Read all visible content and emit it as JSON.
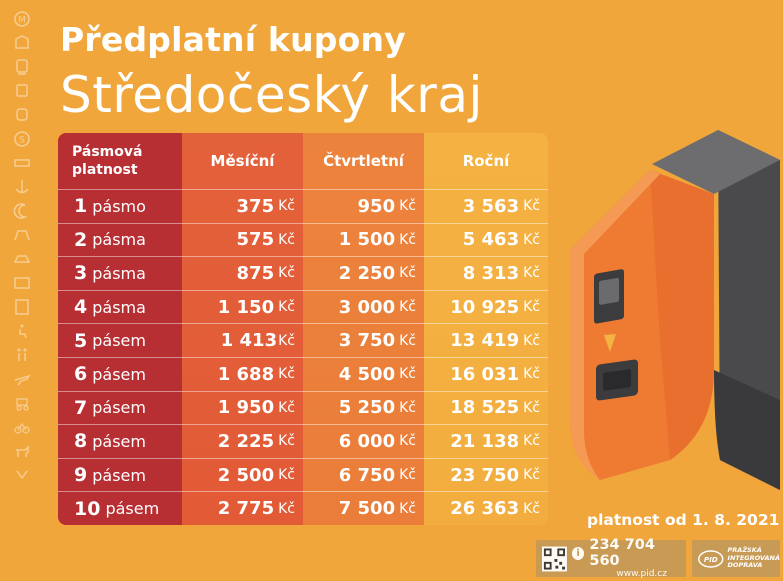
{
  "title": "Předplatní kupony",
  "subtitle": "Středočeský kraj",
  "table": {
    "headers": {
      "zone_line1": "Pásmová",
      "zone_line2": "platnost",
      "monthly": "Měsíční",
      "quarterly": "Čtvrtletní",
      "yearly": "Roční"
    },
    "currency": "Kč",
    "rows": [
      {
        "num": "1",
        "word": "pásmo",
        "monthly": "375",
        "quarterly": "950",
        "yearly": "3 563"
      },
      {
        "num": "2",
        "word": "pásma",
        "monthly": "575",
        "quarterly": "1 500",
        "yearly": "5 463"
      },
      {
        "num": "3",
        "word": "pásma",
        "monthly": "875",
        "quarterly": "2 250",
        "yearly": "8 313"
      },
      {
        "num": "4",
        "word": "pásma",
        "monthly": "1 150",
        "quarterly": "3 000",
        "yearly": "10 925"
      },
      {
        "num": "5",
        "word": "pásem",
        "monthly": "1 413",
        "quarterly": "3 750",
        "yearly": "13 419"
      },
      {
        "num": "6",
        "word": "pásem",
        "monthly": "1 688",
        "quarterly": "4 500",
        "yearly": "16 031"
      },
      {
        "num": "7",
        "word": "pásem",
        "monthly": "1 950",
        "quarterly": "5 250",
        "yearly": "18 525"
      },
      {
        "num": "8",
        "word": "pásem",
        "monthly": "2 225",
        "quarterly": "6 000",
        "yearly": "21 138"
      },
      {
        "num": "9",
        "word": "pásem",
        "monthly": "2 500",
        "quarterly": "6 750",
        "yearly": "23 750"
      },
      {
        "num": "10",
        "word": "pásem",
        "monthly": "2 775",
        "quarterly": "7 500",
        "yearly": "26 363"
      }
    ]
  },
  "validity": "platnost od 1. 8. 2021",
  "contact": {
    "info_glyph": "i",
    "phone": "234 704 560",
    "web": "www.pid.cz"
  },
  "brand": {
    "logo_text": "PID",
    "line1": "PRAŽSKÁ",
    "line2": "INTEGROVANÁ",
    "line3": "DOPRAVA"
  },
  "icons": [
    "metro-icon",
    "bus-icon",
    "tram-icon",
    "train-icon",
    "trolleybus-icon",
    "ferry-icon",
    "ticket-icon",
    "anchor-icon",
    "night-icon",
    "funicular-icon",
    "boat-icon",
    "display-icon",
    "schedule-icon",
    "wheelchair-icon",
    "family-icon",
    "plane-icon",
    "stroller-icon",
    "bicycle-icon",
    "dog-icon",
    "luggage-icon"
  ],
  "colors": {
    "background": "#f0a63a",
    "zone_column": "#b72e33",
    "monthly_column": "#e3613a",
    "quarterly_column": "#ec833c",
    "yearly_column": "#f4b243"
  }
}
